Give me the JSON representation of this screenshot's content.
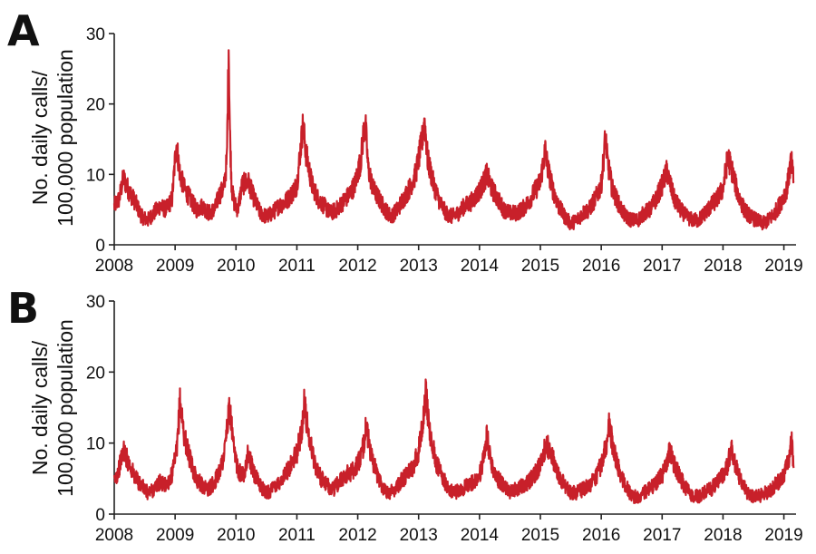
{
  "chart_data": [
    {
      "type": "line",
      "panel_label": "A",
      "ylabel_lines": [
        "No. daily calls/",
        "100,000 population"
      ],
      "xlabel": "",
      "x_ticks": [
        "2008",
        "2009",
        "2010",
        "2011",
        "2012",
        "2013",
        "2014",
        "2015",
        "2016",
        "2017",
        "2018",
        "2019"
      ],
      "y_ticks": [
        "0",
        "10",
        "20",
        "30"
      ],
      "xlim": [
        2008.0,
        2019.2
      ],
      "ylim": [
        0,
        30
      ],
      "grid": false,
      "line_color": "#c8202a",
      "series": [
        {
          "x": [
            2008.0,
            2008.08,
            2008.15,
            2008.25,
            2008.35,
            2008.45,
            2008.55,
            2008.65,
            2008.75,
            2008.85,
            2008.95,
            2009.02,
            2009.08,
            2009.15,
            2009.25,
            2009.35,
            2009.45,
            2009.55,
            2009.65,
            2009.72,
            2009.8,
            2009.85,
            2009.88,
            2009.9,
            2009.93,
            2009.97,
            2010.03,
            2010.1,
            2010.2,
            2010.3,
            2010.4,
            2010.5,
            2010.6,
            2010.7,
            2010.8,
            2010.9,
            2011.0,
            2011.1,
            2011.15,
            2011.25,
            2011.35,
            2011.45,
            2011.55,
            2011.65,
            2011.75,
            2011.85,
            2011.95,
            2012.05,
            2012.12,
            2012.17,
            2012.25,
            2012.35,
            2012.45,
            2012.55,
            2012.65,
            2012.75,
            2012.85,
            2012.95,
            2013.05,
            2013.1,
            2013.15,
            2013.25,
            2013.35,
            2013.45,
            2013.55,
            2013.65,
            2013.75,
            2013.85,
            2013.95,
            2014.05,
            2014.12,
            2014.2,
            2014.3,
            2014.4,
            2014.5,
            2014.6,
            2014.7,
            2014.8,
            2014.9,
            2015.0,
            2015.08,
            2015.12,
            2015.2,
            2015.3,
            2015.4,
            2015.5,
            2015.6,
            2015.7,
            2015.8,
            2015.9,
            2016.0,
            2016.07,
            2016.1,
            2016.18,
            2016.3,
            2016.4,
            2016.5,
            2016.6,
            2016.7,
            2016.8,
            2016.9,
            2017.0,
            2017.08,
            2017.12,
            2017.2,
            2017.3,
            2017.4,
            2017.5,
            2017.6,
            2017.7,
            2017.8,
            2017.9,
            2018.0,
            2018.08,
            2018.15,
            2018.25,
            2018.35,
            2018.45,
            2018.55,
            2018.65,
            2018.75,
            2018.85,
            2018.95,
            2019.05,
            2019.12,
            2019.16
          ],
          "y": [
            5.5,
            6.5,
            9.5,
            7.5,
            6.0,
            4.0,
            3.5,
            4.5,
            5.5,
            5.0,
            6.5,
            14.5,
            10.0,
            8.0,
            6.5,
            5.0,
            5.5,
            4.5,
            5.0,
            7.0,
            8.0,
            12.0,
            28.5,
            16.0,
            8.0,
            6.0,
            5.0,
            8.5,
            9.0,
            6.5,
            4.5,
            4.0,
            4.5,
            5.5,
            6.0,
            7.0,
            8.5,
            17.0,
            13.0,
            8.5,
            6.5,
            5.5,
            4.5,
            5.0,
            6.0,
            7.0,
            8.5,
            12.0,
            18.0,
            11.0,
            8.0,
            6.5,
            5.0,
            4.0,
            5.0,
            6.5,
            8.0,
            10.0,
            14.5,
            17.5,
            12.0,
            8.5,
            6.0,
            4.5,
            4.0,
            4.5,
            5.5,
            6.0,
            7.0,
            8.5,
            10.0,
            8.0,
            6.5,
            5.0,
            4.5,
            4.5,
            5.0,
            6.0,
            7.5,
            9.0,
            13.5,
            11.0,
            8.0,
            5.5,
            4.0,
            3.0,
            3.5,
            4.5,
            5.0,
            6.5,
            8.5,
            15.5,
            12.0,
            8.0,
            5.5,
            4.0,
            3.5,
            3.5,
            4.5,
            5.0,
            6.5,
            8.5,
            10.5,
            9.0,
            6.5,
            5.0,
            4.0,
            3.5,
            3.5,
            4.5,
            5.5,
            6.5,
            8.0,
            12.5,
            10.5,
            7.0,
            5.0,
            4.0,
            3.5,
            3.0,
            3.5,
            4.5,
            6.0,
            8.0,
            12.0,
            9.0
          ]
        }
      ]
    },
    {
      "type": "line",
      "panel_label": "B",
      "ylabel_lines": [
        "No. daily calls/",
        "100,000 population"
      ],
      "xlabel": "",
      "x_ticks": [
        "2008",
        "2009",
        "2010",
        "2011",
        "2012",
        "2013",
        "2014",
        "2015",
        "2016",
        "2017",
        "2018",
        "2019"
      ],
      "y_ticks": [
        "0",
        "10",
        "20",
        "30"
      ],
      "xlim": [
        2008.0,
        2019.2
      ],
      "ylim": [
        0,
        30
      ],
      "grid": false,
      "line_color": "#c8202a",
      "series": [
        {
          "x": [
            2008.0,
            2008.08,
            2008.15,
            2008.25,
            2008.35,
            2008.45,
            2008.55,
            2008.65,
            2008.75,
            2008.85,
            2008.95,
            2009.03,
            2009.08,
            2009.15,
            2009.25,
            2009.35,
            2009.45,
            2009.55,
            2009.65,
            2009.72,
            2009.8,
            2009.85,
            2009.9,
            2009.97,
            2010.05,
            2010.12,
            2010.2,
            2010.3,
            2010.4,
            2010.5,
            2010.6,
            2010.7,
            2010.8,
            2010.9,
            2011.0,
            2011.08,
            2011.12,
            2011.2,
            2011.3,
            2011.4,
            2011.5,
            2011.6,
            2011.7,
            2011.8,
            2011.9,
            2012.0,
            2012.08,
            2012.14,
            2012.2,
            2012.3,
            2012.4,
            2012.5,
            2012.6,
            2012.7,
            2012.8,
            2012.9,
            2013.0,
            2013.08,
            2013.12,
            2013.2,
            2013.3,
            2013.4,
            2013.5,
            2013.6,
            2013.7,
            2013.8,
            2013.9,
            2014.0,
            2014.08,
            2014.12,
            2014.2,
            2014.3,
            2014.4,
            2014.5,
            2014.6,
            2014.7,
            2014.8,
            2014.9,
            2015.0,
            2015.1,
            2015.2,
            2015.3,
            2015.4,
            2015.5,
            2015.6,
            2015.7,
            2015.8,
            2015.9,
            2016.0,
            2016.08,
            2016.12,
            2016.2,
            2016.3,
            2016.4,
            2016.5,
            2016.6,
            2016.7,
            2016.8,
            2016.9,
            2017.0,
            2017.08,
            2017.12,
            2017.2,
            2017.3,
            2017.4,
            2017.5,
            2017.6,
            2017.7,
            2017.8,
            2017.9,
            2018.0,
            2018.08,
            2018.14,
            2018.2,
            2018.3,
            2018.4,
            2018.5,
            2018.6,
            2018.7,
            2018.8,
            2018.9,
            2019.0,
            2019.08,
            2019.12,
            2019.16
          ],
          "y": [
            4.5,
            6.5,
            9.0,
            7.0,
            5.0,
            4.0,
            3.0,
            3.5,
            4.5,
            4.0,
            5.5,
            9.0,
            16.0,
            11.0,
            7.5,
            5.0,
            4.0,
            3.5,
            4.5,
            6.0,
            8.0,
            12.0,
            15.0,
            8.5,
            6.0,
            5.5,
            8.5,
            5.5,
            4.0,
            3.0,
            3.5,
            4.5,
            5.5,
            7.0,
            8.5,
            12.0,
            15.5,
            11.0,
            7.0,
            5.0,
            4.0,
            3.5,
            4.5,
            5.5,
            6.0,
            7.0,
            9.0,
            12.5,
            9.0,
            6.0,
            4.0,
            3.0,
            3.5,
            4.5,
            5.5,
            6.5,
            9.0,
            14.0,
            17.0,
            10.5,
            7.0,
            5.0,
            3.5,
            3.0,
            3.5,
            4.0,
            4.5,
            5.5,
            8.0,
            11.0,
            7.0,
            5.0,
            4.0,
            3.0,
            3.5,
            4.0,
            4.5,
            5.5,
            7.0,
            10.0,
            8.0,
            5.5,
            4.0,
            3.0,
            3.0,
            3.5,
            4.0,
            5.0,
            7.0,
            9.5,
            13.5,
            9.0,
            6.0,
            4.0,
            2.5,
            2.5,
            3.0,
            3.5,
            4.5,
            5.5,
            7.0,
            9.0,
            7.0,
            5.0,
            3.5,
            2.5,
            2.5,
            3.0,
            3.5,
            4.5,
            5.5,
            7.0,
            9.5,
            7.0,
            4.5,
            3.0,
            2.5,
            2.5,
            3.0,
            3.5,
            4.5,
            5.5,
            7.5,
            11.0,
            6.5
          ]
        }
      ]
    }
  ]
}
